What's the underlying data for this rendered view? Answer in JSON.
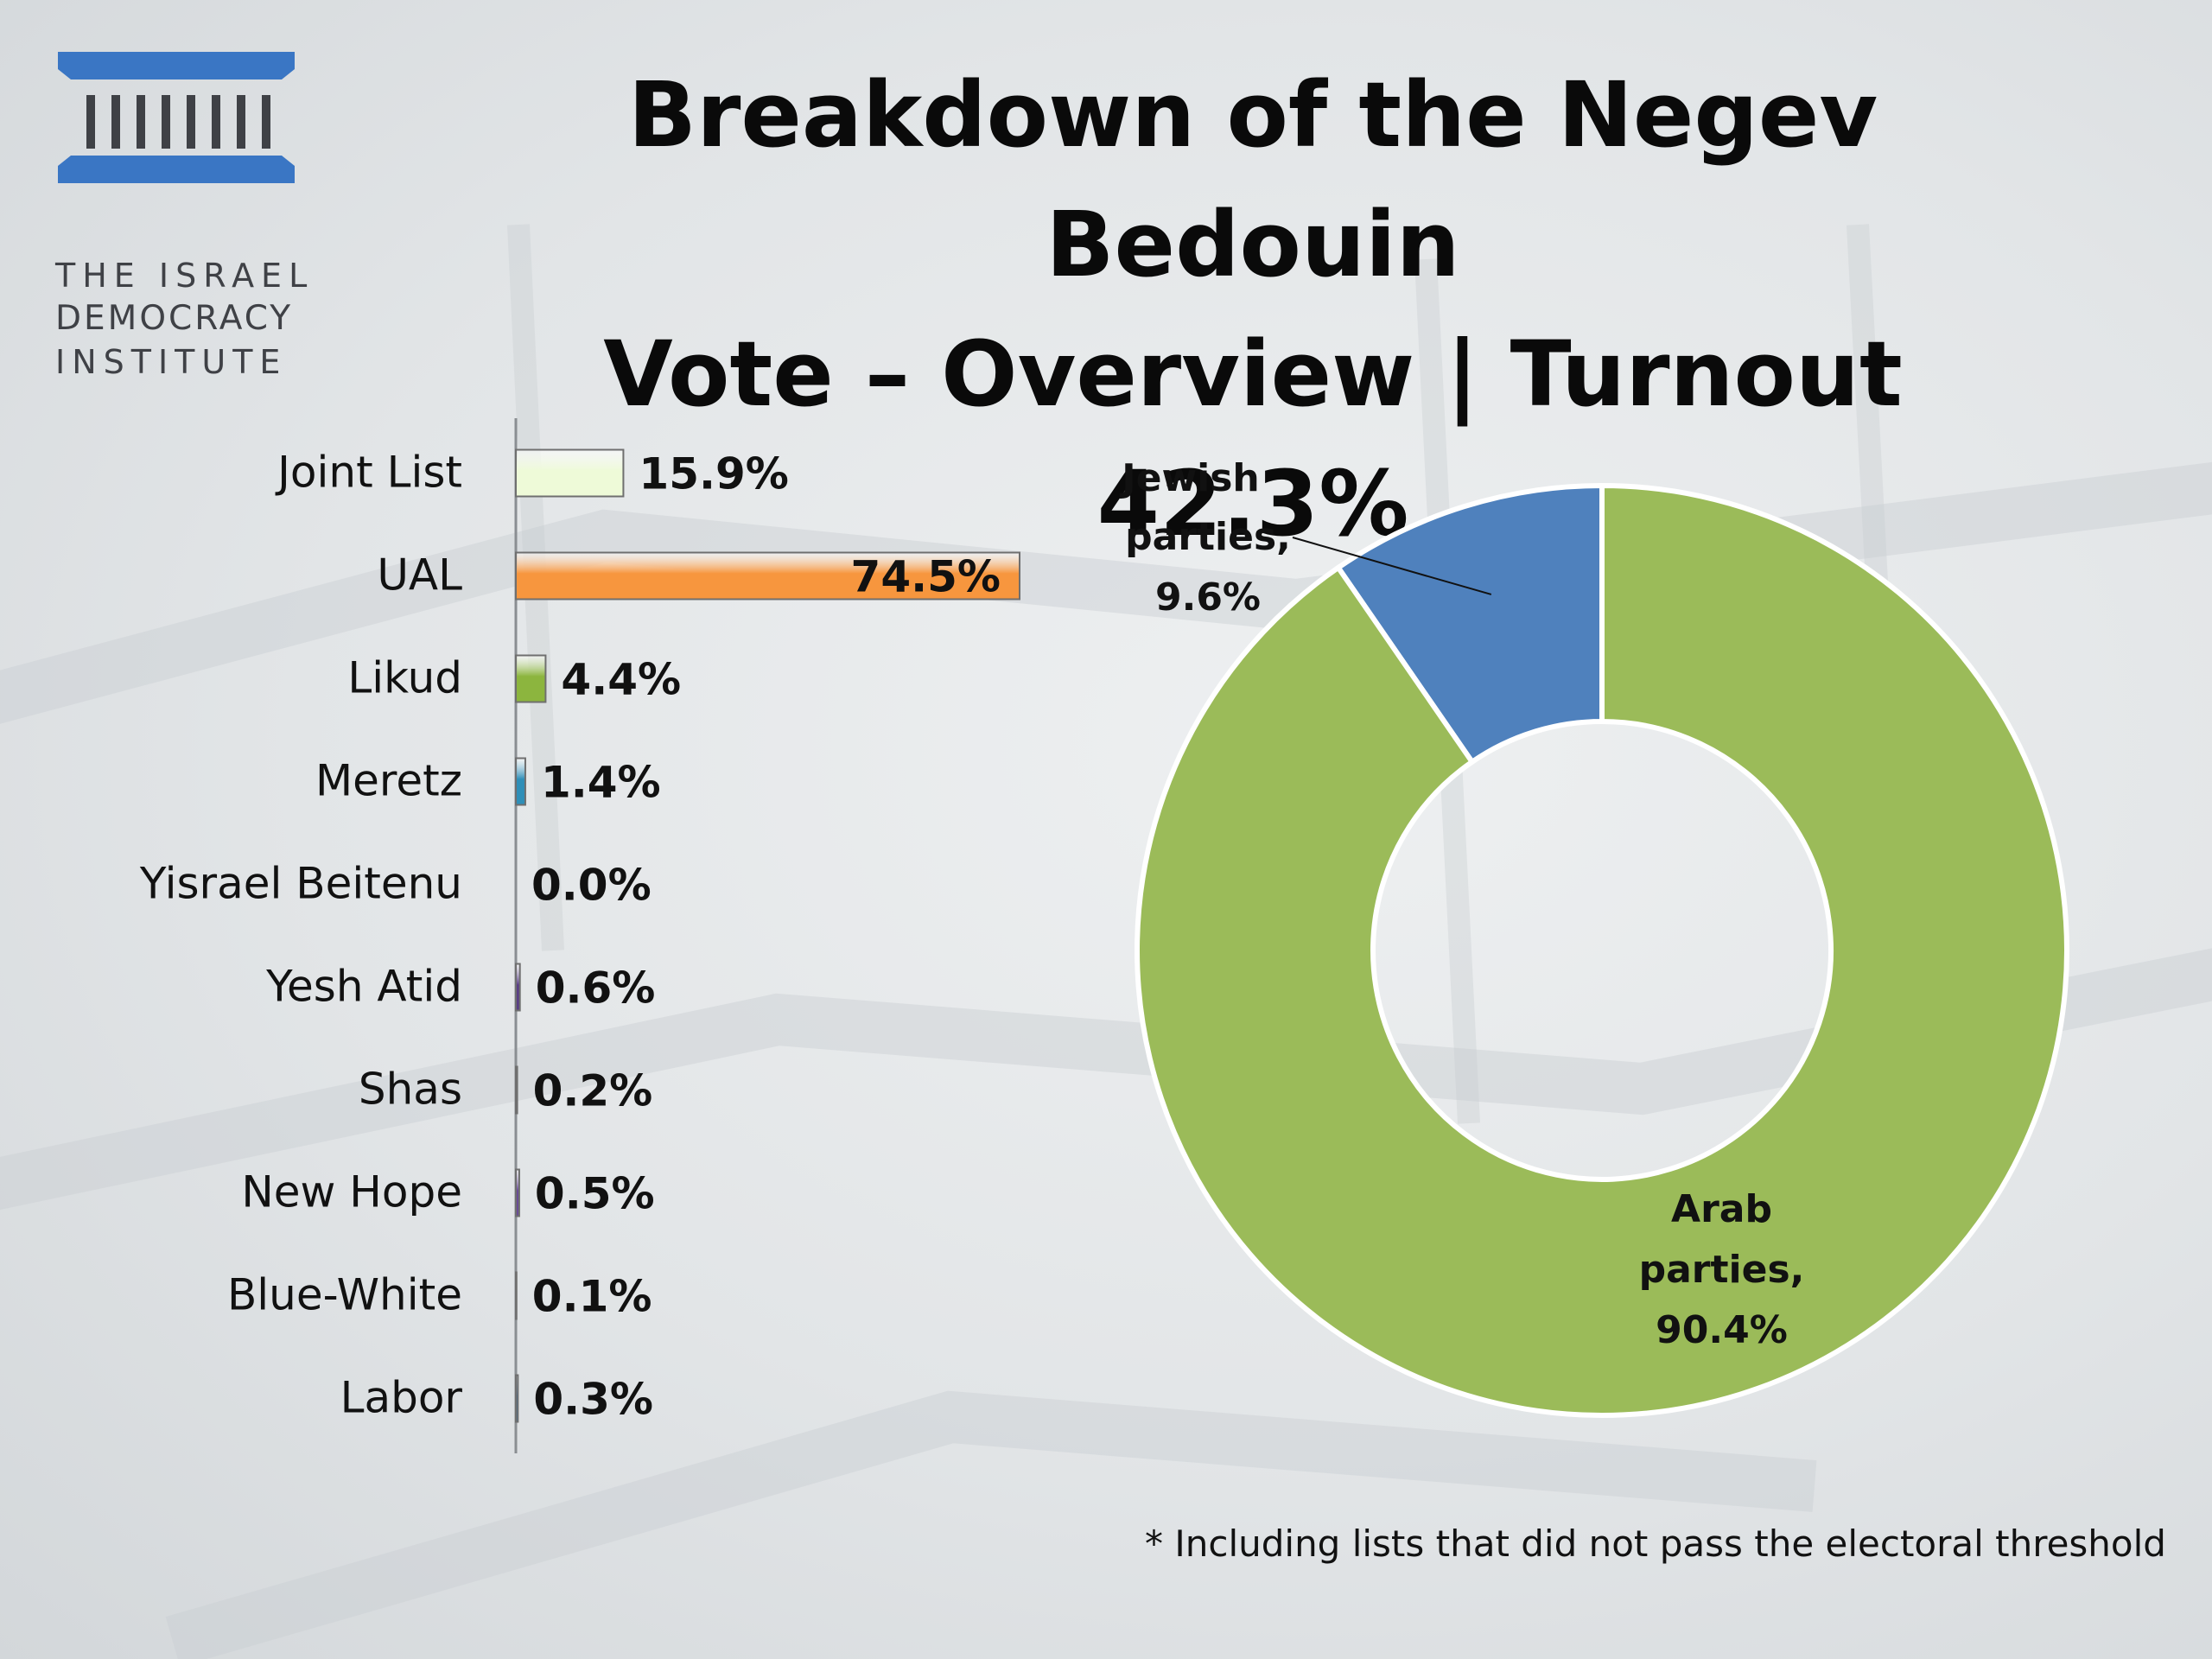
{
  "header": {
    "title_line1": "Breakdown of the Negev Bedouin",
    "title_line2": "Vote – Overview | Turnout 42.3%"
  },
  "logo": {
    "line1": "THE ISRAEL",
    "line2": "DEMOCRACY",
    "line3": "INSTITUTE",
    "color": "#3a76c4"
  },
  "footnote": "* Including lists that did not pass the electoral threshold",
  "chart_data": [
    {
      "type": "bar",
      "orientation": "horizontal",
      "categories": [
        "Joint List",
        "UAL",
        "Likud",
        "Meretz",
        "Yisrael Beitenu",
        "Yesh Atid",
        "Shas",
        "New Hope",
        "Blue-White",
        "Labor"
      ],
      "values": [
        15.9,
        74.5,
        4.4,
        1.4,
        0.0,
        0.6,
        0.2,
        0.5,
        0.1,
        0.3
      ],
      "data_labels": [
        "15.9%",
        "74.5%",
        "4.4%",
        "1.4%",
        "0.0%",
        "0.6%",
        "0.2%",
        "0.5%",
        "0.1%",
        "0.3%"
      ],
      "colors": [
        "#eefad8",
        "#f7963e",
        "#8cb53e",
        "#2f8fb8",
        "#8cb53e",
        "#5a3e86",
        "#3a3a3a",
        "#6a4a98",
        "#b23a2e",
        "#2d6ea8"
      ],
      "xlim": [
        0,
        100
      ],
      "grid": false
    },
    {
      "type": "pie",
      "style": "donut",
      "labels": [
        "Jewish parties,",
        "Arab parties,"
      ],
      "values": [
        9.6,
        90.4
      ],
      "data_labels": [
        "9.6%",
        "90.4%"
      ],
      "colors": [
        "#4f81bd",
        "#9bbb59"
      ]
    }
  ]
}
